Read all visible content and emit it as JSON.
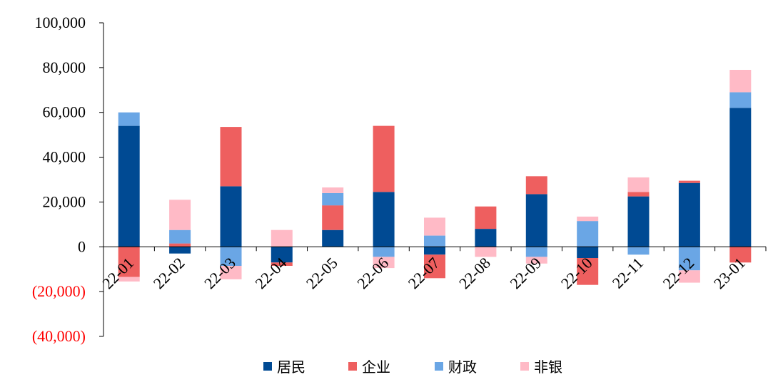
{
  "chart_data": {
    "type": "bar",
    "stacked": true,
    "categories": [
      "22-01",
      "22-02",
      "22-03",
      "22-04",
      "22-05",
      "22-06",
      "22-07",
      "22-08",
      "22-09",
      "22-10",
      "22-11",
      "22-12",
      "23-01"
    ],
    "series": [
      {
        "name": "居民",
        "color": "#004a93",
        "values": [
          54000,
          -3000,
          27000,
          -7000,
          7500,
          24500,
          -3500,
          8000,
          23500,
          -5000,
          22500,
          28500,
          62000
        ]
      },
      {
        "name": "企业",
        "color": "#ee5f5f",
        "values": [
          -13500,
          1500,
          26500,
          -1500,
          11000,
          29500,
          -10500,
          10000,
          8000,
          -12000,
          2000,
          1000,
          -7000
        ]
      },
      {
        "name": "财政",
        "color": "#6aa6e5",
        "values": [
          6000,
          6000,
          -8500,
          0,
          5500,
          -4500,
          5000,
          0,
          -4500,
          11500,
          -3500,
          -10500,
          7000
        ]
      },
      {
        "name": "非银",
        "color": "#ffbac6",
        "values": [
          -2000,
          13500,
          -6000,
          7500,
          2500,
          -5000,
          8000,
          -4500,
          -3000,
          2000,
          6500,
          -5500,
          10000
        ]
      }
    ],
    "ylim": [
      -40000,
      100000
    ],
    "yticks": [
      -40000,
      -20000,
      0,
      20000,
      40000,
      60000,
      80000,
      100000
    ],
    "ytick_labels": [
      "(40,000)",
      "(20,000)",
      "0",
      "20,000",
      "40,000",
      "60,000",
      "80,000",
      "100,000"
    ],
    "negative_tick_color": "#ff0000",
    "legend_position": "bottom",
    "grid": false
  }
}
